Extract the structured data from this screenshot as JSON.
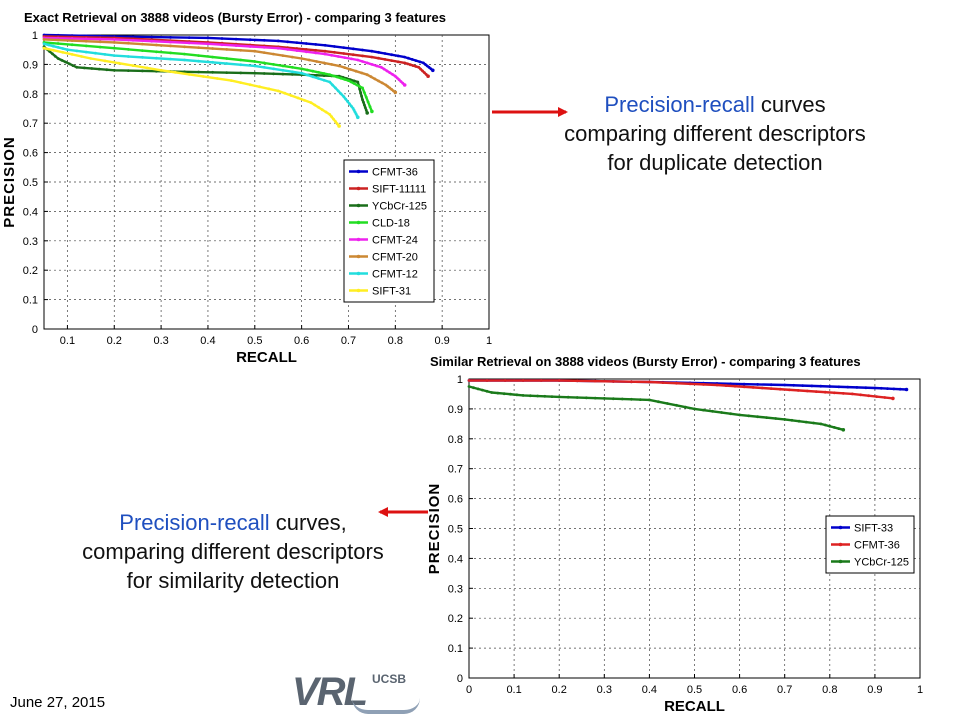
{
  "captions": {
    "duplicate": {
      "blue": "Precision-recall",
      "rest1": " curves",
      "line2": "comparing different descriptors",
      "line3": "for duplicate detection"
    },
    "similarity": {
      "blue": "Precision-recall",
      "rest1": " curves,",
      "line2": "comparing different descriptors",
      "line3": "for similarity detection"
    }
  },
  "footer": {
    "date": "June 27, 2015",
    "logo_text": "VRL",
    "logo_sub": "UCSB"
  },
  "icons": {
    "arrow_1": "red-arrow-icon",
    "arrow_2": "red-arrow-icon"
  },
  "chart_data": [
    {
      "type": "line",
      "title": "Exact Retrieval on 3888 videos (Bursty Error) - comparing 3 features",
      "xlabel": "RECALL",
      "ylabel": "PRECISION",
      "xlim": [
        0.05,
        1
      ],
      "ylim": [
        0,
        1
      ],
      "xticks": [
        0.1,
        0.2,
        0.3,
        0.4,
        0.5,
        0.6,
        0.7,
        0.8,
        0.9,
        1
      ],
      "xtick_labels": [
        "0.1",
        "0.2",
        "0.3",
        "0.4",
        "0.5",
        "0.6",
        "0.7",
        "0.8",
        "0.9",
        "1"
      ],
      "yticks": [
        0,
        0.1,
        0.2,
        0.3,
        0.4,
        0.5,
        0.6,
        0.7,
        0.8,
        0.9,
        1
      ],
      "ytick_labels": [
        "0",
        "0.1",
        "0.2",
        "0.3",
        "0.4",
        "0.5",
        "0.6",
        "0.7",
        "0.8",
        "0.9",
        "1"
      ],
      "grid": true,
      "legend_position": "bottom-right",
      "series": [
        {
          "name": "CFMT-36",
          "color": "#0000cc",
          "points": [
            [
              0.05,
              1.0
            ],
            [
              0.2,
              0.995
            ],
            [
              0.4,
              0.99
            ],
            [
              0.55,
              0.98
            ],
            [
              0.65,
              0.965
            ],
            [
              0.75,
              0.945
            ],
            [
              0.82,
              0.925
            ],
            [
              0.86,
              0.905
            ],
            [
              0.88,
              0.88
            ]
          ]
        },
        {
          "name": "SIFT-11111",
          "color": "#cc2222",
          "points": [
            [
              0.05,
              0.995
            ],
            [
              0.2,
              0.99
            ],
            [
              0.4,
              0.975
            ],
            [
              0.55,
              0.96
            ],
            [
              0.65,
              0.945
            ],
            [
              0.75,
              0.925
            ],
            [
              0.82,
              0.905
            ],
            [
              0.85,
              0.89
            ],
            [
              0.87,
              0.86
            ]
          ]
        },
        {
          "name": "YCbCr-125",
          "color": "#1a6e1a",
          "points": [
            [
              0.05,
              0.96
            ],
            [
              0.08,
              0.92
            ],
            [
              0.12,
              0.89
            ],
            [
              0.2,
              0.88
            ],
            [
              0.35,
              0.875
            ],
            [
              0.5,
              0.87
            ],
            [
              0.6,
              0.865
            ],
            [
              0.68,
              0.86
            ],
            [
              0.72,
              0.84
            ],
            [
              0.73,
              0.78
            ],
            [
              0.74,
              0.735
            ]
          ]
        },
        {
          "name": "CLD-18",
          "color": "#22dd22",
          "points": [
            [
              0.05,
              0.975
            ],
            [
              0.2,
              0.955
            ],
            [
              0.35,
              0.935
            ],
            [
              0.5,
              0.91
            ],
            [
              0.6,
              0.885
            ],
            [
              0.66,
              0.865
            ],
            [
              0.7,
              0.845
            ],
            [
              0.73,
              0.82
            ],
            [
              0.75,
              0.74
            ]
          ]
        },
        {
          "name": "CFMT-24",
          "color": "#ee22ee",
          "points": [
            [
              0.05,
              0.99
            ],
            [
              0.2,
              0.985
            ],
            [
              0.4,
              0.97
            ],
            [
              0.55,
              0.955
            ],
            [
              0.65,
              0.935
            ],
            [
              0.72,
              0.915
            ],
            [
              0.77,
              0.89
            ],
            [
              0.8,
              0.86
            ],
            [
              0.82,
              0.83
            ]
          ]
        },
        {
          "name": "CFMT-20",
          "color": "#cc8833",
          "points": [
            [
              0.05,
              0.985
            ],
            [
              0.2,
              0.975
            ],
            [
              0.35,
              0.96
            ],
            [
              0.5,
              0.945
            ],
            [
              0.6,
              0.92
            ],
            [
              0.68,
              0.895
            ],
            [
              0.74,
              0.865
            ],
            [
              0.78,
              0.83
            ],
            [
              0.8,
              0.805
            ]
          ]
        },
        {
          "name": "CFMT-12",
          "color": "#22dddd",
          "points": [
            [
              0.05,
              0.97
            ],
            [
              0.1,
              0.95
            ],
            [
              0.2,
              0.93
            ],
            [
              0.35,
              0.915
            ],
            [
              0.5,
              0.895
            ],
            [
              0.6,
              0.87
            ],
            [
              0.66,
              0.84
            ],
            [
              0.69,
              0.79
            ],
            [
              0.71,
              0.75
            ],
            [
              0.72,
              0.72
            ]
          ]
        },
        {
          "name": "SIFT-31",
          "color": "#ffee22",
          "points": [
            [
              0.05,
              0.955
            ],
            [
              0.15,
              0.92
            ],
            [
              0.3,
              0.88
            ],
            [
              0.45,
              0.845
            ],
            [
              0.55,
              0.81
            ],
            [
              0.62,
              0.77
            ],
            [
              0.66,
              0.73
            ],
            [
              0.68,
              0.69
            ]
          ]
        }
      ]
    },
    {
      "type": "line",
      "title": "Similar Retrieval on 3888 videos (Bursty Error) - comparing 3 features",
      "xlabel": "RECALL",
      "ylabel": "PRECISION",
      "xlim": [
        0,
        1
      ],
      "ylim": [
        0,
        1
      ],
      "xticks": [
        0,
        0.1,
        0.2,
        0.3,
        0.4,
        0.5,
        0.6,
        0.7,
        0.8,
        0.9,
        1
      ],
      "xtick_labels": [
        "0",
        "0.1",
        "0.2",
        "0.3",
        "0.4",
        "0.5",
        "0.6",
        "0.7",
        "0.8",
        "0.9",
        "1"
      ],
      "yticks": [
        0,
        0.1,
        0.2,
        0.3,
        0.4,
        0.5,
        0.6,
        0.7,
        0.8,
        0.9,
        1
      ],
      "ytick_labels": [
        "0",
        "0.1",
        "0.2",
        "0.3",
        "0.4",
        "0.5",
        "0.6",
        "0.7",
        "0.8",
        "0.9",
        "1"
      ],
      "grid": true,
      "legend_position": "bottom-right",
      "series": [
        {
          "name": "SIFT-33",
          "color": "#0000cc",
          "points": [
            [
              0.0,
              0.995
            ],
            [
              0.2,
              0.995
            ],
            [
              0.4,
              0.99
            ],
            [
              0.55,
              0.985
            ],
            [
              0.7,
              0.98
            ],
            [
              0.8,
              0.975
            ],
            [
              0.9,
              0.97
            ],
            [
              0.97,
              0.965
            ]
          ]
        },
        {
          "name": "CFMT-36",
          "color": "#dd2222",
          "points": [
            [
              0.0,
              0.995
            ],
            [
              0.2,
              0.995
            ],
            [
              0.4,
              0.99
            ],
            [
              0.55,
              0.98
            ],
            [
              0.65,
              0.97
            ],
            [
              0.75,
              0.96
            ],
            [
              0.85,
              0.95
            ],
            [
              0.94,
              0.935
            ]
          ]
        },
        {
          "name": "YCbCr-125",
          "color": "#1a7a1a",
          "points": [
            [
              0.0,
              0.975
            ],
            [
              0.05,
              0.955
            ],
            [
              0.12,
              0.945
            ],
            [
              0.2,
              0.94
            ],
            [
              0.3,
              0.935
            ],
            [
              0.4,
              0.93
            ],
            [
              0.5,
              0.9
            ],
            [
              0.6,
              0.88
            ],
            [
              0.7,
              0.865
            ],
            [
              0.78,
              0.85
            ],
            [
              0.83,
              0.83
            ]
          ]
        }
      ]
    }
  ]
}
